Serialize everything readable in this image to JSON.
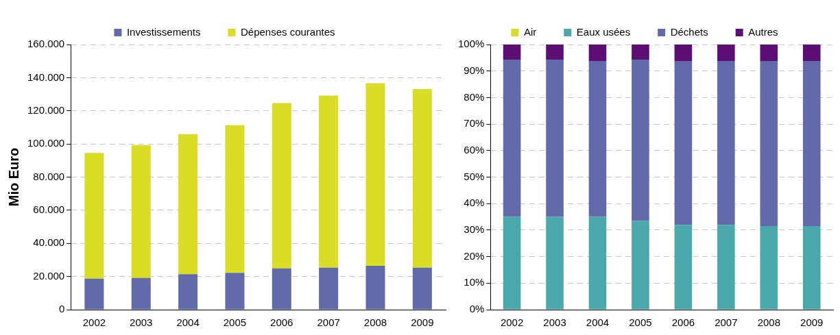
{
  "chart_data": [
    {
      "type": "bar",
      "stacked": true,
      "ylabel": "Mio Euro",
      "categories": [
        "2002",
        "2003",
        "2004",
        "2005",
        "2006",
        "2007",
        "2008",
        "2009"
      ],
      "series": [
        {
          "name": "Investissements",
          "color": "#636aaa",
          "values": [
            18700,
            19100,
            21400,
            22200,
            24900,
            25300,
            26500,
            25300
          ]
        },
        {
          "name": "Dépenses courantes",
          "color": "#d9dd25",
          "values": [
            75900,
            80200,
            84500,
            89100,
            99700,
            103900,
            110100,
            107800
          ]
        }
      ],
      "ylim": [
        0,
        160000
      ],
      "yticks": [
        {
          "value": 0,
          "label": "0"
        },
        {
          "value": 20000,
          "label": "20.000"
        },
        {
          "value": 40000,
          "label": "40.000"
        },
        {
          "value": 60000,
          "label": "60.000"
        },
        {
          "value": 80000,
          "label": "80.000"
        },
        {
          "value": 100000,
          "label": "100.000"
        },
        {
          "value": 120000,
          "label": "120.000"
        },
        {
          "value": 140000,
          "label": "140.000"
        },
        {
          "value": 160000,
          "label": "160.000"
        }
      ],
      "grid": "y",
      "legend": "top"
    },
    {
      "type": "bar",
      "stacked": true,
      "categories": [
        "2002",
        "2003",
        "2004",
        "2005",
        "2006",
        "2007",
        "2008",
        "2009"
      ],
      "series": [
        {
          "name": "Air",
          "color": "#d9dd25",
          "values": [
            0,
            0,
            0,
            0,
            0,
            0,
            0,
            0
          ]
        },
        {
          "name": "Eaux usées",
          "color": "#4ba8aa",
          "values": [
            35,
            35,
            35,
            33.5,
            32,
            32,
            31.5,
            31.5
          ]
        },
        {
          "name": "Déchets",
          "color": "#636aaa",
          "values": [
            59.3,
            59.3,
            58.8,
            60.8,
            61.8,
            61.8,
            62.3,
            62.3
          ]
        },
        {
          "name": "Autres",
          "color": "#5c0e74",
          "values": [
            5.7,
            5.7,
            6.2,
            5.7,
            6.2,
            6.2,
            6.2,
            6.2
          ]
        }
      ],
      "ylim": [
        0,
        100
      ],
      "yticks": [
        {
          "value": 0,
          "label": "0%"
        },
        {
          "value": 10,
          "label": "10%"
        },
        {
          "value": 20,
          "label": "20%"
        },
        {
          "value": 30,
          "label": "30%"
        },
        {
          "value": 40,
          "label": "40%"
        },
        {
          "value": 50,
          "label": "50%"
        },
        {
          "value": 60,
          "label": "60%"
        },
        {
          "value": 70,
          "label": "70%"
        },
        {
          "value": 80,
          "label": "80%"
        },
        {
          "value": 90,
          "label": "90%"
        },
        {
          "value": 100,
          "label": "100%"
        }
      ],
      "grid": "y",
      "legend": "top"
    }
  ]
}
